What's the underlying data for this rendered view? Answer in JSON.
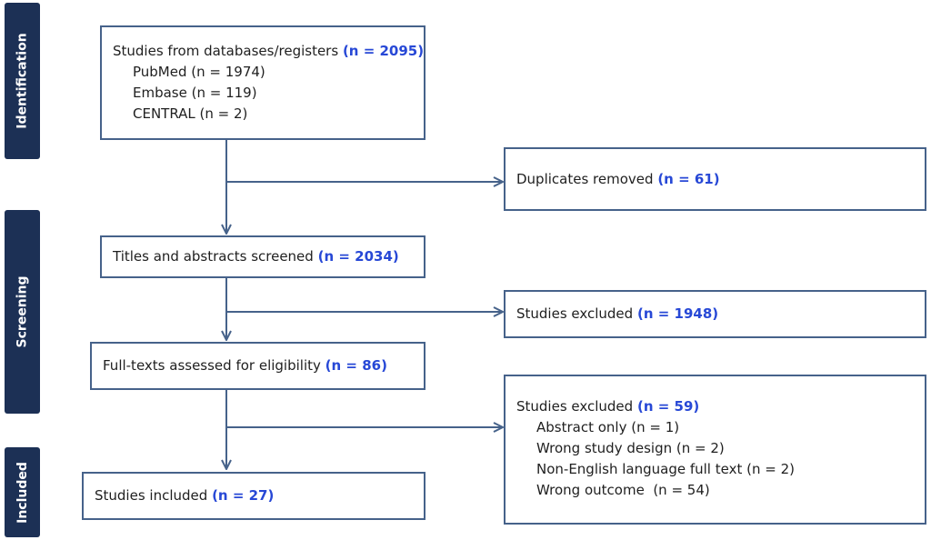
{
  "phases": {
    "identification": "Identification",
    "screening": "Screening",
    "included": "Included"
  },
  "boxes": {
    "identification": {
      "label": "Studies from databases/registers",
      "n": "(n = 2095)",
      "sources": [
        "PubMed (n = 1974)",
        "Embase (n = 119)",
        "CENTRAL (n = 2)"
      ]
    },
    "duplicates": {
      "label": "Duplicates removed",
      "n": "(n = 61)"
    },
    "screened": {
      "label": "Titles and abstracts screened",
      "n": "(n = 2034)"
    },
    "excluded_screening": {
      "label": "Studies excluded",
      "n": "(n = 1948)"
    },
    "fulltext": {
      "label": "Full-texts assessed for eligibility",
      "n": "(n = 86)"
    },
    "excluded_fulltext": {
      "label": "Studies excluded",
      "n": "(n = 59)",
      "reasons": [
        "Abstract only (n = 1)",
        "Wrong study design (n = 2)",
        "Non-English language full text (n = 2)",
        "Wrong outcome  (n = 54)"
      ]
    },
    "included": {
      "label": "Studies included",
      "n": "(n = 27)"
    }
  },
  "colors": {
    "phase_fill": "#1c3055",
    "box_border": "#46628a",
    "count_text": "#2748d6",
    "arrow": "#46628a"
  }
}
